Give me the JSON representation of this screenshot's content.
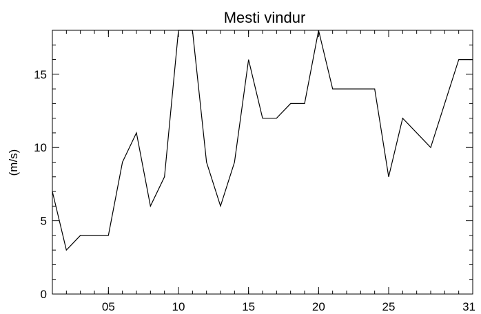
{
  "chart_data": {
    "type": "line",
    "title": "Mesti vindur",
    "xlabel": "",
    "ylabel": "(m/s)",
    "xlim": [
      1,
      31
    ],
    "ylim": [
      0,
      18
    ],
    "x_ticks": [
      5,
      10,
      15,
      20,
      25,
      31
    ],
    "x_tick_labels": [
      "05",
      "10",
      "15",
      "20",
      "25",
      "31"
    ],
    "y_ticks": [
      0,
      5,
      10,
      15
    ],
    "y_tick_labels": [
      "0",
      "5",
      "10",
      "15"
    ],
    "grid": false,
    "series": [
      {
        "x": [
          1,
          2,
          3,
          4,
          5,
          6,
          7,
          8,
          9,
          10,
          11,
          12,
          13,
          14,
          15,
          16,
          17,
          18,
          19,
          20,
          21,
          22,
          23,
          24,
          25,
          26,
          27,
          28,
          29,
          30,
          31
        ],
        "values": [
          7,
          3,
          4,
          4,
          4,
          9,
          11,
          6,
          8,
          18,
          18,
          9,
          6,
          9,
          16,
          12,
          12,
          13,
          13,
          18,
          14,
          14,
          14,
          14,
          8,
          12,
          11,
          10,
          13,
          16,
          16
        ]
      }
    ],
    "line_color": "#000000"
  }
}
